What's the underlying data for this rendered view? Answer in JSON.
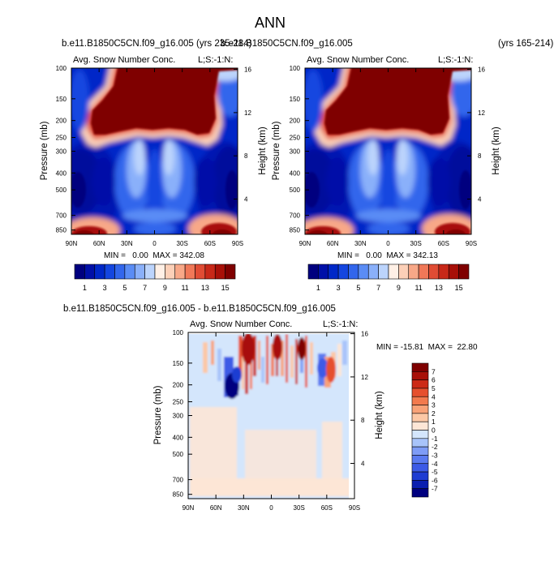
{
  "title": "ANN",
  "colors": {
    "abs_scale": [
      "#00007f",
      "#0010a8",
      "#0028c8",
      "#1446e0",
      "#3266ec",
      "#5a8cf5",
      "#8ab0fa",
      "#bcd4fc",
      "#fff0e6",
      "#fcd0b8",
      "#f8a888",
      "#f07858",
      "#e04c34",
      "#c82818",
      "#a81008",
      "#7f0000"
    ],
    "diff_scale": [
      "#00007f",
      "#0a1eb0",
      "#1e3cd2",
      "#3c5ae6",
      "#5a7af0",
      "#7e9cf6",
      "#a8c4fa",
      "#d4e6fc",
      "#fde6d6",
      "#fcc8a6",
      "#f8a278",
      "#f27a4e",
      "#e6502e",
      "#cc2a16",
      "#a81008",
      "#7f0000"
    ]
  },
  "chart_data": [
    {
      "type": "heatmap",
      "panel": "left",
      "header_left": "b.e11.B1850C5CN.f09_g16.005 (yrs 235-284)",
      "header_right": "b.e11.B1850C5CN.f09_g16.005",
      "title": "Avg. Snow Number Conc.",
      "corner_label": "L;S:-1:N:",
      "xlabel": "",
      "ylabel": "Pressure (mb)",
      "ylabel_right": "Height (km)",
      "xticks": [
        "90N",
        "60N",
        "30N",
        "0",
        "30S",
        "60S",
        "90S"
      ],
      "yticks": [
        "100",
        "150",
        "200",
        "250",
        "300",
        "400",
        "500",
        "700",
        "850"
      ],
      "height_ticks": [
        "16",
        "12",
        "8",
        "4"
      ],
      "min": "0.00",
      "max": "342.08",
      "minmax_text": "MIN =   0.00  MAX = 342.08",
      "colorbar_labels": [
        "1",
        "3",
        "5",
        "7",
        "9",
        "11",
        "13",
        "15"
      ]
    },
    {
      "type": "heatmap",
      "panel": "right",
      "header_right": "(yrs 165-214)",
      "title": "Avg. Snow Number Conc.",
      "corner_label": "L;S:-1:N:",
      "ylabel": "Pressure (mb)",
      "ylabel_right": "Height (km)",
      "xticks": [
        "90N",
        "60N",
        "30N",
        "0",
        "30S",
        "60S",
        "90S"
      ],
      "yticks": [
        "100",
        "150",
        "200",
        "250",
        "300",
        "400",
        "500",
        "700",
        "850"
      ],
      "height_ticks": [
        "16",
        "12",
        "8",
        "4"
      ],
      "min": "0.00",
      "max": "342.13",
      "minmax_text": "MIN =   0.00  MAX = 342.13",
      "colorbar_labels": [
        "1",
        "3",
        "5",
        "7",
        "9",
        "11",
        "13",
        "15"
      ]
    },
    {
      "type": "heatmap",
      "panel": "difference",
      "header": "b.e11.B1850C5CN.f09_g16.005 - b.e11.B1850C5CN.f09_g16.005",
      "title": "Avg. Snow Number Conc.",
      "corner_label": "L;S:-1:N:",
      "ylabel": "Pressure (mb)",
      "ylabel_right": "Height (km)",
      "xticks": [
        "90N",
        "60N",
        "30N",
        "0",
        "30S",
        "60S",
        "90S"
      ],
      "yticks": [
        "100",
        "150",
        "200",
        "250",
        "300",
        "400",
        "500",
        "700",
        "850"
      ],
      "height_ticks": [
        "16",
        "12",
        "8",
        "4"
      ],
      "min": "-15.81",
      "max": "22.80",
      "minmax_text": "MIN = -15.81  MAX =  22.80",
      "colorbar_labels": [
        "7",
        "6",
        "5",
        "4",
        "3",
        "2",
        "1",
        "0",
        "-1",
        "-2",
        "-3",
        "-4",
        "-5",
        "-6",
        "-7"
      ]
    }
  ]
}
